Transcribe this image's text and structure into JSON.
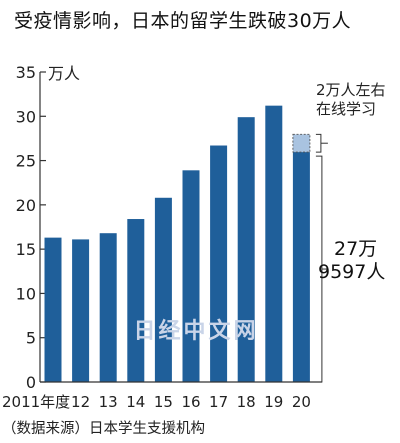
{
  "title": "受疫情影响，日本的留学生跌破30万人",
  "source": "（数据来源）日本学生支援机构",
  "watermark": "日经中文网",
  "colors": {
    "bar": "#1f5f9a",
    "online_segment": "#a9c3e0",
    "axis": "#333333",
    "text": "#222222"
  },
  "chart_data": {
    "type": "bar",
    "title": "受疫情影响，日本的留学生跌破30万人",
    "ylabel": "万人",
    "xlabel": "",
    "ylim": [
      0,
      35
    ],
    "yticks": [
      0,
      5,
      10,
      15,
      20,
      25,
      30,
      35
    ],
    "categories": [
      "2011年度",
      "12",
      "13",
      "14",
      "15",
      "16",
      "17",
      "18",
      "19",
      "20"
    ],
    "values": [
      16.3,
      16.1,
      16.8,
      18.4,
      20.8,
      23.9,
      26.7,
      29.9,
      31.2,
      27.9597
    ],
    "stack_top_2020": 27.9597,
    "online_2020_label": "2万人左右在线学习",
    "online_2020_lines": [
      "2万人左右",
      "在线学习"
    ],
    "online_2020_approx": 2,
    "in_country_2020_approx": 25.96,
    "label_2020_lines": [
      "27万",
      "9597人"
    ],
    "grid": false,
    "legend": "none"
  }
}
